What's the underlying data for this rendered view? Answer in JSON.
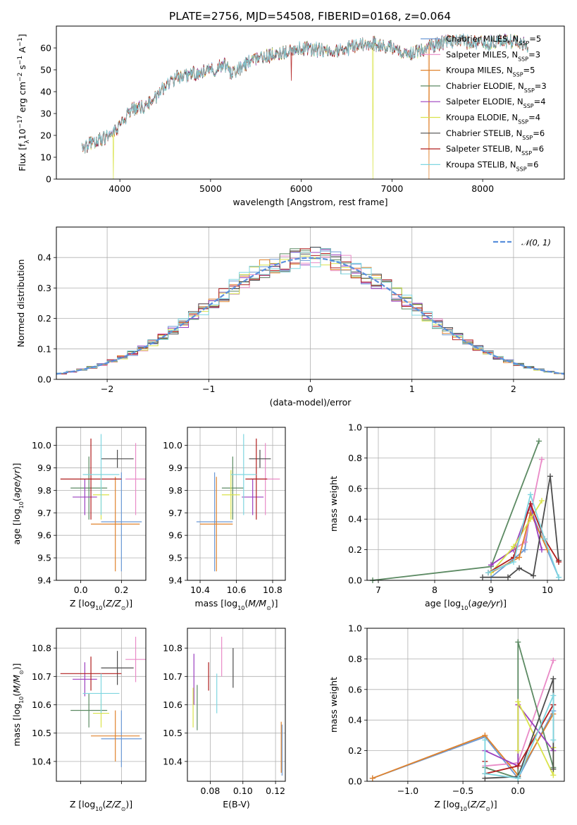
{
  "figure": {
    "title": "PLATE=2756, MJD=54508, FIBERID=0168, z=0.064",
    "colors": {
      "Chabrier MILES": "#6c9ad6",
      "Salpeter MILES": "#e98ac7",
      "Kroupa MILES": "#e0822c",
      "Chabrier ELODIE": "#5c8a63",
      "Salpeter ELODIE": "#9b3fbf",
      "Kroupa ELODIE": "#d9e34a",
      "Chabrier STELIB": "#4d4d4d",
      "Salpeter STELIB": "#b01e1e",
      "Kroupa STELIB": "#7fd6e0",
      "gaussian": "#5a8fdc",
      "grid": "#b0b0b0"
    }
  },
  "chart_data": [
    {
      "id": "spectrum",
      "type": "line",
      "xlabel": "wavelength [Angstrom, rest frame]",
      "ylabel": "Flux [f_λ 10^-17 erg cm^-2 s^-1 A^-1]",
      "xlim": [
        3300,
        8900
      ],
      "ylim": [
        0,
        70
      ],
      "xticks": [
        4000,
        5000,
        6000,
        7000,
        8000
      ],
      "yticks": [
        0,
        10,
        20,
        30,
        40,
        50,
        60
      ],
      "grid": false,
      "legend_position": "right",
      "legend": [
        {
          "key": "Chabrier MILES",
          "label": "Chabrier MILES, N",
          "sub": "SSP",
          "n": "=5"
        },
        {
          "key": "Salpeter MILES",
          "label": "Salpeter MILES, N",
          "sub": "SSP",
          "n": "=3"
        },
        {
          "key": "Kroupa MILES",
          "label": "Kroupa MILES, N",
          "sub": "SSP",
          "n": "=5"
        },
        {
          "key": "Chabrier ELODIE",
          "label": "Chabrier ELODIE, N",
          "sub": "SSP",
          "n": "=3"
        },
        {
          "key": "Salpeter ELODIE",
          "label": "Salpeter ELODIE, N",
          "sub": "SSP",
          "n": "=4"
        },
        {
          "key": "Kroupa ELODIE",
          "label": "Kroupa ELODIE, N",
          "sub": "SSP",
          "n": "=4"
        },
        {
          "key": "Chabrier STELIB",
          "label": "Chabrier STELIB, N",
          "sub": "SSP",
          "n": "=6"
        },
        {
          "key": "Salpeter STELIB",
          "label": "Salpeter STELIB, N",
          "sub": "SSP",
          "n": "=6"
        },
        {
          "key": "Kroupa STELIB",
          "label": "Kroupa STELIB, N",
          "sub": "SSP",
          "n": "=6"
        }
      ],
      "continuum": {
        "x": [
          3580,
          3700,
          3850,
          3950,
          4050,
          4150,
          4300,
          4450,
          4600,
          4800,
          5000,
          5150,
          5250,
          5400,
          5600,
          5800,
          6000,
          6200,
          6400,
          6600,
          6800,
          7000,
          7200,
          7400,
          7600,
          7800,
          8000,
          8200,
          8400,
          8500
        ],
        "y": [
          13,
          17,
          19,
          22,
          28,
          32,
          34,
          40,
          46,
          48,
          50,
          52,
          48,
          53,
          56,
          58,
          60,
          59,
          58,
          61,
          62,
          60,
          57,
          60,
          63,
          63,
          62,
          63,
          63,
          60
        ]
      },
      "dropouts": [
        {
          "x": 3930,
          "series": "Kroupa ELODIE",
          "y": 0
        },
        {
          "x": 5890,
          "series": "Salpeter STELIB",
          "y": 45
        },
        {
          "x": 6790,
          "series": "Kroupa ELODIE",
          "y": 0
        },
        {
          "x": 7410,
          "series": "Kroupa MILES",
          "y": 0
        }
      ]
    },
    {
      "id": "residuals",
      "type": "line",
      "xlabel": "(data-model)/error",
      "ylabel": "Normed distribution",
      "xlim": [
        -2.5,
        2.5
      ],
      "ylim": [
        0,
        0.5
      ],
      "xticks": [
        -2,
        -1,
        0,
        1,
        2
      ],
      "xticklabels": [
        "−2",
        "−1",
        "0",
        "1",
        "2"
      ],
      "yticks": [
        0.0,
        0.1,
        0.2,
        0.3,
        0.4
      ],
      "grid": true,
      "bin_width": 0.1,
      "legend": "N(0,1)",
      "legend_position": "top-right"
    },
    {
      "id": "age_vs_Z",
      "type": "scatter",
      "xlabel": "Z [log10(Z/Z⊙)]",
      "ylabel": "age [log10(age/yr)]",
      "xlim": [
        -0.12,
        0.32
      ],
      "ylim": [
        9.4,
        10.08
      ],
      "xticks": [
        0.0,
        0.2
      ],
      "yticks": [
        9.4,
        9.5,
        9.6,
        9.7,
        9.8,
        9.9,
        10.0
      ],
      "grid": true,
      "points": [
        {
          "series": "Chabrier MILES",
          "x": 0.2,
          "y": 9.66,
          "xerr": 0.1,
          "yerr": 0.22
        },
        {
          "series": "Salpeter MILES",
          "x": 0.27,
          "y": 9.85,
          "xerr": 0.05,
          "yerr": 0.16
        },
        {
          "series": "Kroupa MILES",
          "x": 0.17,
          "y": 9.65,
          "xerr": 0.12,
          "yerr": 0.21
        },
        {
          "series": "Chabrier ELODIE",
          "x": 0.04,
          "y": 9.81,
          "xerr": 0.09,
          "yerr": 0.14
        },
        {
          "series": "Salpeter ELODIE",
          "x": 0.02,
          "y": 9.77,
          "xerr": 0.06,
          "yerr": 0.08
        },
        {
          "series": "Kroupa ELODIE",
          "x": 0.1,
          "y": 9.78,
          "xerr": 0.04,
          "yerr": 0.11
        },
        {
          "series": "Chabrier STELIB",
          "x": 0.18,
          "y": 9.94,
          "xerr": 0.08,
          "yerr": 0.04
        },
        {
          "series": "Salpeter STELIB",
          "x": 0.05,
          "y": 9.85,
          "xerr": 0.15,
          "yerr": 0.18
        },
        {
          "series": "Kroupa STELIB",
          "x": 0.1,
          "y": 9.87,
          "xerr": 0.09,
          "yerr": 0.18
        }
      ]
    },
    {
      "id": "age_vs_mass",
      "type": "scatter",
      "xlabel": "mass [log10(M/M⊙)]",
      "ylabel": "",
      "xlim": [
        10.33,
        10.87
      ],
      "ylim": [
        9.4,
        10.08
      ],
      "xticks": [
        10.4,
        10.6,
        10.8
      ],
      "yticks": [
        9.4,
        9.5,
        9.6,
        9.7,
        9.8,
        9.9,
        10.0
      ],
      "grid": true,
      "points": [
        {
          "series": "Chabrier MILES",
          "x": 10.48,
          "y": 9.66,
          "xerr": 0.1,
          "yerr": 0.22
        },
        {
          "series": "Salpeter MILES",
          "x": 10.76,
          "y": 9.85,
          "xerr": 0.08,
          "yerr": 0.16
        },
        {
          "series": "Kroupa MILES",
          "x": 10.49,
          "y": 9.65,
          "xerr": 0.09,
          "yerr": 0.21
        },
        {
          "series": "Chabrier ELODIE",
          "x": 10.58,
          "y": 9.81,
          "xerr": 0.06,
          "yerr": 0.14
        },
        {
          "series": "Salpeter ELODIE",
          "x": 10.69,
          "y": 9.77,
          "xerr": 0.06,
          "yerr": 0.08
        },
        {
          "series": "Kroupa ELODIE",
          "x": 10.57,
          "y": 9.78,
          "xerr": 0.05,
          "yerr": 0.11
        },
        {
          "series": "Chabrier STELIB",
          "x": 10.73,
          "y": 9.94,
          "xerr": 0.06,
          "yerr": 0.04
        },
        {
          "series": "Salpeter STELIB",
          "x": 10.71,
          "y": 9.85,
          "xerr": 0.06,
          "yerr": 0.18
        },
        {
          "series": "Kroupa STELIB",
          "x": 10.64,
          "y": 9.87,
          "xerr": 0.07,
          "yerr": 0.18
        }
      ]
    },
    {
      "id": "weights_vs_age",
      "type": "line",
      "xlabel": "age [log10(age/yr)]",
      "ylabel": "mass weight",
      "xlim": [
        6.8,
        10.3
      ],
      "ylim": [
        0,
        1
      ],
      "xticks": [
        7,
        8,
        9,
        10
      ],
      "yticks": [
        0.0,
        0.2,
        0.4,
        0.6,
        0.8,
        1.0
      ],
      "grid": true,
      "series": [
        {
          "name": "Chabrier MILES",
          "x": [
            9.0,
            9.6,
            9.7,
            10.2
          ],
          "y": [
            0.02,
            0.2,
            0.46,
            0.02
          ]
        },
        {
          "name": "Salpeter MILES",
          "x": [
            9.0,
            9.6,
            9.9
          ],
          "y": [
            0.1,
            0.25,
            0.79
          ]
        },
        {
          "name": "Kroupa MILES",
          "x": [
            9.0,
            9.5,
            9.7,
            10.0
          ],
          "y": [
            0.05,
            0.15,
            0.44,
            0.2
          ]
        },
        {
          "name": "Chabrier ELODIE",
          "x": [
            6.9,
            9.0,
            9.85
          ],
          "y": [
            0.0,
            0.09,
            0.91
          ]
        },
        {
          "name": "Salpeter ELODIE",
          "x": [
            9.0,
            9.4,
            9.7,
            9.9
          ],
          "y": [
            0.1,
            0.2,
            0.5,
            0.2
          ]
        },
        {
          "name": "Kroupa ELODIE",
          "x": [
            9.0,
            9.4,
            9.7,
            9.9
          ],
          "y": [
            0.05,
            0.22,
            0.4,
            0.52
          ]
        },
        {
          "name": "Chabrier STELIB",
          "x": [
            8.85,
            9.3,
            9.5,
            9.75,
            10.05,
            10.2
          ],
          "y": [
            0.02,
            0.02,
            0.08,
            0.03,
            0.68,
            0.13
          ]
        },
        {
          "name": "Salpeter STELIB",
          "x": [
            8.95,
            9.4,
            9.7,
            9.95,
            10.2
          ],
          "y": [
            0.05,
            0.15,
            0.5,
            0.27,
            0.12
          ]
        },
        {
          "name": "Kroupa STELIB",
          "x": [
            8.95,
            9.4,
            9.7,
            9.95,
            10.2
          ],
          "y": [
            0.05,
            0.12,
            0.56,
            0.27,
            0.02
          ]
        }
      ]
    },
    {
      "id": "mass_vs_Z",
      "type": "scatter",
      "xlabel": "Z [log10(Z/Z⊙)]",
      "ylabel": "mass [log10(M/M⊙)]",
      "xlim": [
        -0.12,
        0.32
      ],
      "ylim": [
        10.33,
        10.87
      ],
      "xticks": [
        0.0,
        0.2
      ],
      "yticks": [
        10.4,
        10.5,
        10.6,
        10.7,
        10.8
      ],
      "grid": true,
      "points": [
        {
          "series": "Chabrier MILES",
          "x": 0.2,
          "y": 10.48,
          "xerr": 0.1,
          "yerr": 0.1
        },
        {
          "series": "Salpeter MILES",
          "x": 0.27,
          "y": 10.76,
          "xerr": 0.05,
          "yerr": 0.08
        },
        {
          "series": "Kroupa MILES",
          "x": 0.17,
          "y": 10.49,
          "xerr": 0.12,
          "yerr": 0.09
        },
        {
          "series": "Chabrier ELODIE",
          "x": 0.04,
          "y": 10.58,
          "xerr": 0.09,
          "yerr": 0.06
        },
        {
          "series": "Salpeter ELODIE",
          "x": 0.02,
          "y": 10.69,
          "xerr": 0.06,
          "yerr": 0.06
        },
        {
          "series": "Kroupa ELODIE",
          "x": 0.1,
          "y": 10.57,
          "xerr": 0.04,
          "yerr": 0.05
        },
        {
          "series": "Chabrier STELIB",
          "x": 0.18,
          "y": 10.73,
          "xerr": 0.08,
          "yerr": 0.06
        },
        {
          "series": "Salpeter STELIB",
          "x": 0.05,
          "y": 10.71,
          "xerr": 0.15,
          "yerr": 0.06
        },
        {
          "series": "Kroupa STELIB",
          "x": 0.1,
          "y": 10.64,
          "xerr": 0.09,
          "yerr": 0.07
        }
      ]
    },
    {
      "id": "mass_vs_ebv",
      "type": "scatter",
      "xlabel": "E(B-V)",
      "ylabel": "",
      "xlim": [
        0.066,
        0.126
      ],
      "ylim": [
        10.33,
        10.87
      ],
      "xticks": [
        0.08,
        0.1,
        0.12
      ],
      "xticklabels": [
        "0.08",
        "0.10",
        "0.12"
      ],
      "yticks": [
        10.4,
        10.5,
        10.6,
        10.7,
        10.8
      ],
      "grid": true,
      "points": [
        {
          "series": "Chabrier MILES",
          "x": 0.124,
          "y": 10.44,
          "yerr": 0.09
        },
        {
          "series": "Salpeter MILES",
          "x": 0.087,
          "y": 10.77,
          "yerr": 0.07
        },
        {
          "series": "Kroupa MILES",
          "x": 0.1235,
          "y": 10.45,
          "yerr": 0.09
        },
        {
          "series": "Chabrier ELODIE",
          "x": 0.072,
          "y": 10.59,
          "yerr": 0.08
        },
        {
          "series": "Salpeter ELODIE",
          "x": 0.07,
          "y": 10.69,
          "yerr": 0.09
        },
        {
          "series": "Kroupa ELODIE",
          "x": 0.0695,
          "y": 10.59,
          "yerr": 0.07
        },
        {
          "series": "Chabrier STELIB",
          "x": 0.094,
          "y": 10.73,
          "yerr": 0.07
        },
        {
          "series": "Salpeter STELIB",
          "x": 0.079,
          "y": 10.7,
          "yerr": 0.05
        },
        {
          "series": "Kroupa STELIB",
          "x": 0.084,
          "y": 10.64,
          "yerr": 0.07
        }
      ]
    },
    {
      "id": "weights_vs_Z",
      "type": "line",
      "xlabel": "Z [log10(Z/Z⊙)]",
      "ylabel": "mass weight",
      "xlim": [
        -1.37,
        0.42
      ],
      "ylim": [
        0,
        1
      ],
      "xticks": [
        -1.0,
        -0.5,
        0.0
      ],
      "xticklabels": [
        "−1.0",
        "−0.5",
        "0.0"
      ],
      "yticks": [
        0.0,
        0.2,
        0.4,
        0.6,
        0.8,
        1.0
      ],
      "grid": true,
      "series": [
        {
          "name": "Chabrier MILES",
          "x": [
            -1.32,
            -0.3,
            0.0,
            0.32
          ],
          "y": [
            0.02,
            0.29,
            0.02,
            0.46
          ]
        },
        {
          "name": "Salpeter MILES",
          "x": [
            -0.3,
            0.0,
            0.32
          ],
          "y": [
            0.1,
            0.12,
            0.79
          ]
        },
        {
          "name": "Kroupa MILES",
          "x": [
            -1.32,
            -0.3,
            0.0,
            0.32
          ],
          "y": [
            0.02,
            0.3,
            0.04,
            0.44
          ]
        },
        {
          "name": "Chabrier ELODIE",
          "x": [
            -0.3,
            0.0,
            0.0,
            0.32
          ],
          "y": [
            0.09,
            0.02,
            0.91,
            0.09
          ]
        },
        {
          "name": "Salpeter ELODIE",
          "x": [
            -0.3,
            0.0,
            0.0,
            0.32
          ],
          "y": [
            0.2,
            0.1,
            0.5,
            0.2
          ]
        },
        {
          "name": "Kroupa ELODIE",
          "x": [
            0.0,
            0.0,
            0.32,
            0.32
          ],
          "y": [
            0.2,
            0.52,
            0.04,
            0.22
          ]
        },
        {
          "name": "Chabrier STELIB",
          "x": [
            -0.3,
            0.0,
            0.32,
            0.32
          ],
          "y": [
            0.02,
            0.03,
            0.67,
            0.08
          ]
        },
        {
          "name": "Salpeter STELIB",
          "x": [
            -0.3,
            -0.3,
            0.0,
            0.32
          ],
          "y": [
            0.13,
            0.05,
            0.1,
            0.5
          ]
        },
        {
          "name": "Kroupa STELIB",
          "x": [
            -0.3,
            -0.3,
            0.0,
            0.32,
            0.32
          ],
          "y": [
            0.27,
            0.05,
            0.02,
            0.56,
            0.27
          ]
        }
      ]
    }
  ]
}
